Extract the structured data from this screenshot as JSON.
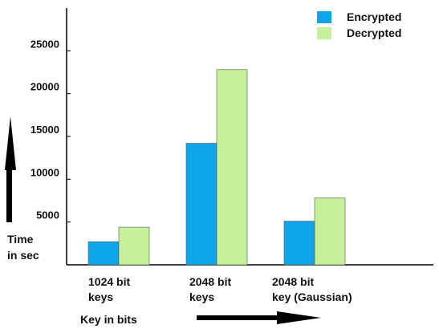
{
  "chart_data": {
    "type": "bar",
    "categories": [
      [
        "1024 bit",
        "keys"
      ],
      [
        "2048 bit",
        "keys"
      ],
      [
        "2048 bit",
        "key (Gaussian)"
      ]
    ],
    "series": [
      {
        "name": "Encrypted",
        "color": "#0ea5e9",
        "values": [
          2700,
          14200,
          5100
        ]
      },
      {
        "name": "Decrypted",
        "color": "#c6f09a",
        "values": [
          4400,
          22800,
          7800
        ]
      }
    ],
    "yticks": [
      5000,
      10000,
      15000,
      20000,
      25000
    ],
    "ylim": [
      0,
      30000
    ],
    "ylabel": [
      "Time",
      "in sec"
    ],
    "xlabel": "Key in bits",
    "legend_position": "top-right",
    "grid": false
  }
}
